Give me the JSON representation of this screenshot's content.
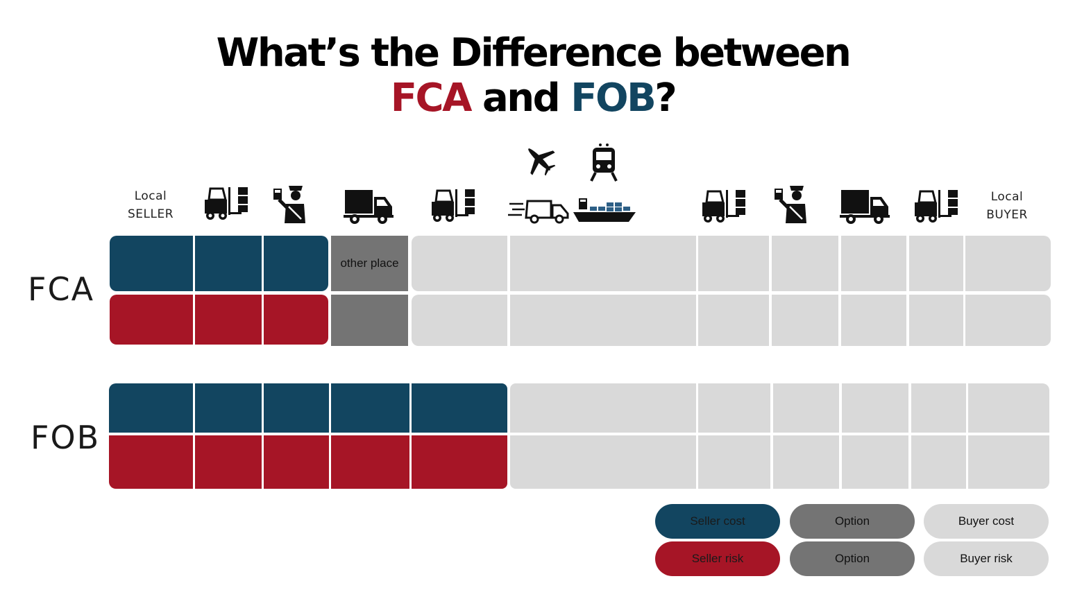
{
  "title": {
    "line1": "What’s the Difference between",
    "fca": "FCA",
    "and": " and ",
    "fob": "FOB",
    "qmark": "?"
  },
  "columns": {
    "local_seller": [
      "Local",
      "SELLER"
    ],
    "local_buyer": [
      "Local",
      "BUYER"
    ]
  },
  "icons": [
    "forklift-icon",
    "customs-officer-icon",
    "truck-icon",
    "forklift-icon",
    "airplane-icon",
    "train-icon",
    "fast-truck-icon",
    "cargo-ship-icon",
    "forklift-icon",
    "customs-officer-icon",
    "truck-icon",
    "forklift-icon"
  ],
  "rows": {
    "fca": {
      "label": "FCA",
      "option_cell": "other place"
    },
    "fob": {
      "label": "FOB"
    }
  },
  "legend": {
    "seller_cost": "Seller cost",
    "seller_risk": "Seller risk",
    "option_cost": "Option",
    "option_risk": "Option",
    "buyer_cost": "Buyer cost",
    "buyer_risk": "Buyer risk"
  },
  "colors": {
    "seller_cost": "#124560",
    "seller_risk": "#a61526",
    "option": "#747474",
    "buyer": "#d9d9d9"
  }
}
